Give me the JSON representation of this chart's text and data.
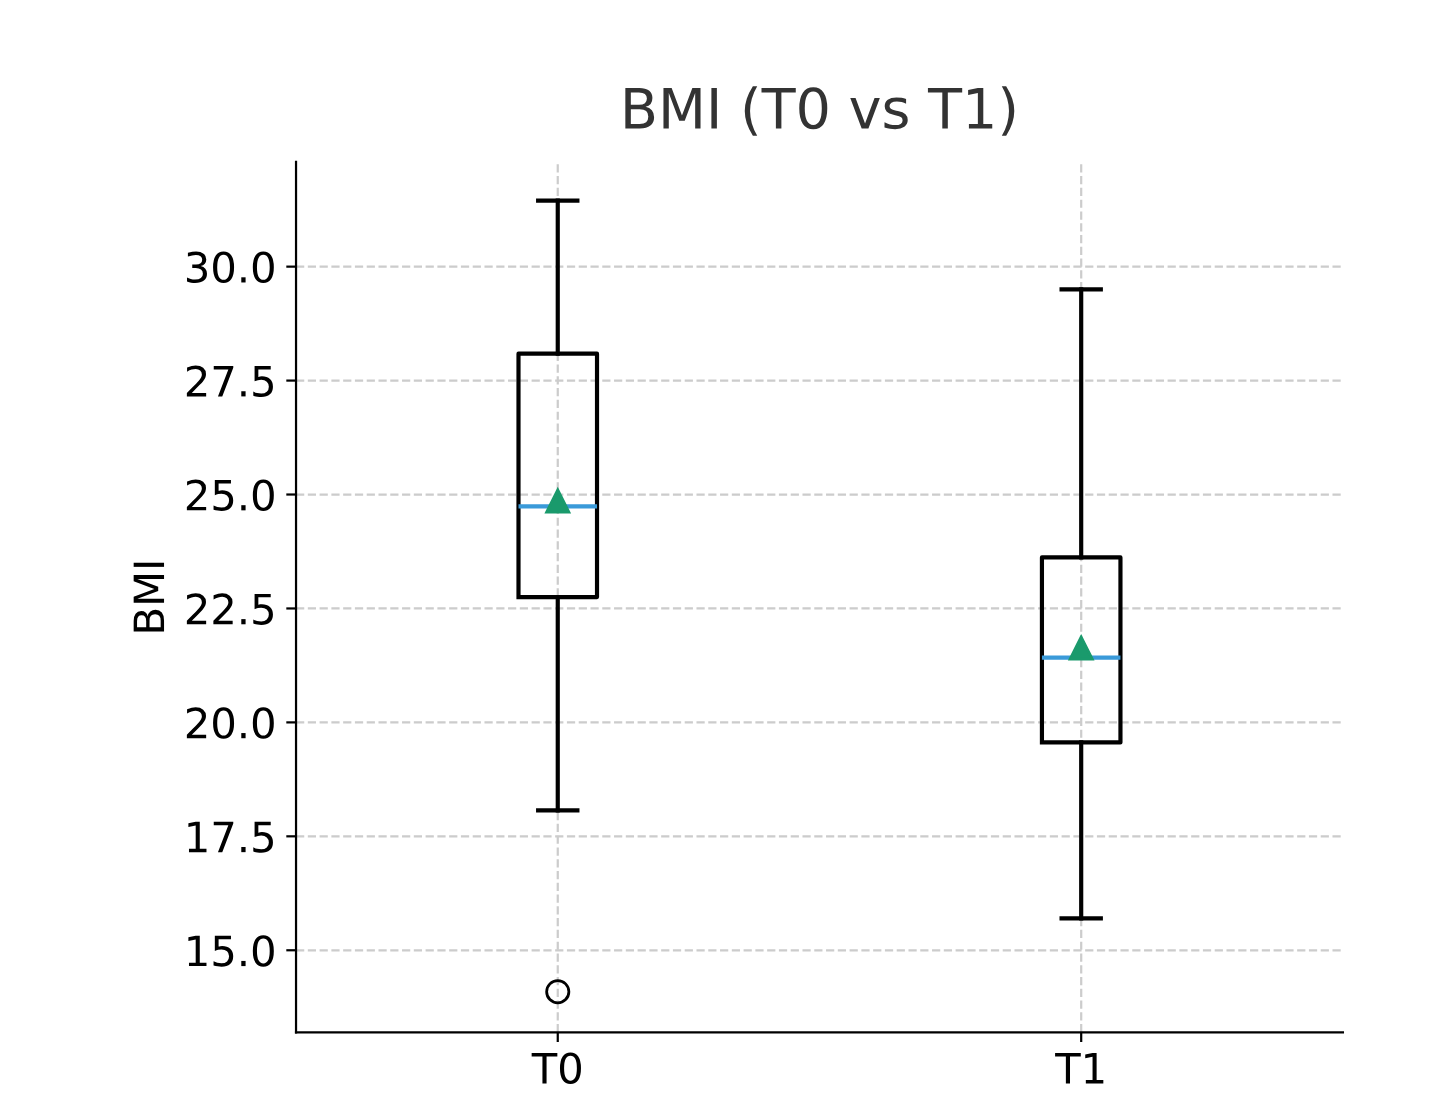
{
  "chart_data": {
    "type": "box",
    "title": "BMI (T0 vs T1)",
    "ylabel": "BMI",
    "categories": [
      "T0",
      "T1"
    ],
    "boxes": [
      {
        "low": 18.07,
        "q1": 22.75,
        "median": 24.74,
        "q3": 28.09,
        "high": 31.45,
        "mean": 24.86,
        "outliers": [
          14.09
        ]
      },
      {
        "low": 15.7,
        "q1": 19.56,
        "median": 21.42,
        "q3": 23.62,
        "high": 29.5,
        "mean": 21.63
      }
    ],
    "ylim": [
      13.2,
      32.3
    ],
    "yticks": [
      {
        "value": 15,
        "label": "15.0"
      },
      {
        "value": 17.5,
        "label": "17.5"
      },
      {
        "value": 20,
        "label": "20.0"
      },
      {
        "value": 22.5,
        "label": "22.5"
      },
      {
        "value": 25,
        "label": "25.0"
      },
      {
        "value": 27.5,
        "label": "27.5"
      },
      {
        "value": 30,
        "label": "30.0"
      }
    ],
    "grid": true
  }
}
